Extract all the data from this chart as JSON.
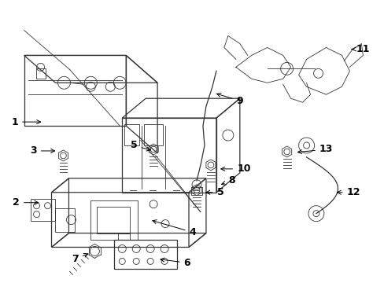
{
  "background_color": "#ffffff",
  "line_color": "#333333",
  "font_size": 9,
  "arrow_lw": 0.7,
  "figsize": [
    4.89,
    3.6
  ],
  "dpi": 100
}
